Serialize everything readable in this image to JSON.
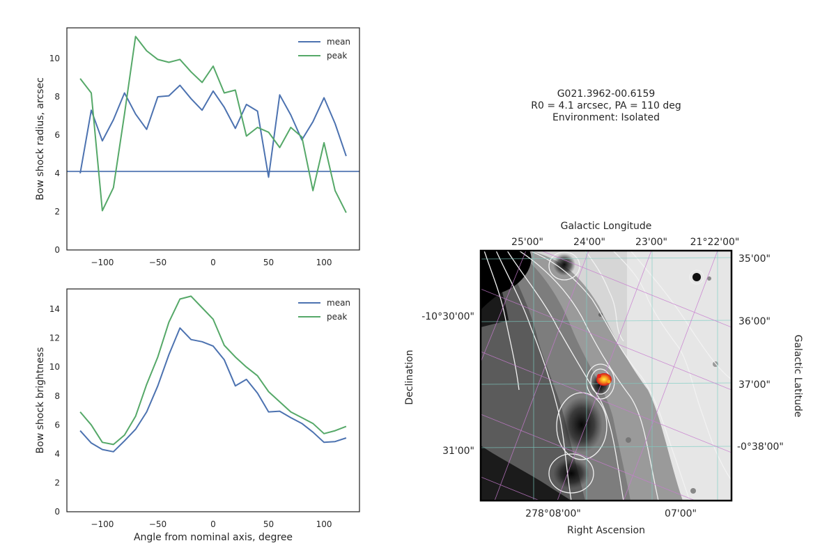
{
  "chart_data": [
    {
      "type": "line",
      "xlim": [
        -132,
        132
      ],
      "ylim": [
        0,
        11.6
      ],
      "xticks": [
        -100,
        -50,
        0,
        50,
        100
      ],
      "yticks": [
        0,
        2,
        4,
        6,
        8,
        10
      ],
      "xlabel": "",
      "ylabel": "Bow shock radius, arcsec",
      "x": [
        -120,
        -110,
        -100,
        -90,
        -80,
        -70,
        -60,
        -50,
        -40,
        -30,
        -20,
        -10,
        0,
        10,
        20,
        30,
        40,
        50,
        60,
        70,
        80,
        90,
        100,
        110,
        120
      ],
      "series": [
        {
          "name": "mean",
          "color": "#4c72b0",
          "values": [
            4.0,
            7.3,
            5.7,
            6.8,
            8.2,
            7.1,
            6.3,
            8.0,
            8.05,
            8.6,
            7.9,
            7.3,
            8.3,
            7.45,
            6.35,
            7.6,
            7.25,
            3.8,
            8.1,
            7.05,
            5.75,
            6.7,
            7.95,
            6.6,
            4.9
          ]
        },
        {
          "name": "peak",
          "color": "#55a868",
          "values": [
            8.95,
            8.2,
            2.05,
            3.25,
            7.1,
            11.15,
            10.4,
            9.95,
            9.8,
            9.95,
            9.3,
            8.75,
            9.6,
            8.2,
            8.35,
            5.95,
            6.4,
            6.15,
            5.35,
            6.4,
            5.9,
            3.1,
            5.6,
            3.1,
            1.95
          ]
        }
      ],
      "hline": {
        "y": 4.1,
        "color": "#4c72b0"
      },
      "legend": "top-right"
    },
    {
      "type": "line",
      "xlim": [
        -132,
        132
      ],
      "ylim": [
        0,
        15.4
      ],
      "xticks": [
        -100,
        -50,
        0,
        50,
        100
      ],
      "yticks": [
        0,
        2,
        4,
        6,
        8,
        10,
        12,
        14
      ],
      "xlabel": "Angle from nominal axis, degree",
      "ylabel": "Bow shock brightness",
      "x": [
        -120,
        -110,
        -100,
        -90,
        -80,
        -70,
        -60,
        -50,
        -40,
        -30,
        -20,
        -10,
        0,
        10,
        20,
        30,
        40,
        50,
        60,
        70,
        80,
        90,
        100,
        110,
        120
      ],
      "series": [
        {
          "name": "mean",
          "color": "#4c72b0",
          "values": [
            5.6,
            4.75,
            4.3,
            4.15,
            4.9,
            5.7,
            6.9,
            8.7,
            10.85,
            12.7,
            11.9,
            11.75,
            11.45,
            10.5,
            8.7,
            9.15,
            8.2,
            6.9,
            6.95,
            6.5,
            6.1,
            5.5,
            4.8,
            4.85,
            5.1
          ]
        },
        {
          "name": "peak",
          "color": "#55a868",
          "values": [
            6.9,
            6.0,
            4.8,
            4.65,
            5.3,
            6.6,
            8.8,
            10.7,
            13.1,
            14.7,
            14.9,
            14.1,
            13.3,
            11.5,
            10.7,
            10.0,
            9.4,
            8.3,
            7.6,
            6.9,
            6.5,
            6.1,
            5.4,
            5.6,
            5.9
          ]
        }
      ],
      "legend": "top-right"
    }
  ],
  "info": {
    "line1": "G021.3962-00.6159",
    "line2": "R0 = 4.1 arcsec, PA = 110 deg",
    "line3": "Environment: Isolated"
  },
  "sky": {
    "top_label": "Galactic Longitude",
    "top_ticks": [
      "25'00\"",
      "24'00\"",
      "23'00\"",
      "21°22'00\""
    ],
    "right_label": "Galactic Latitude",
    "right_ticks": [
      "35'00\"",
      "36'00\"",
      "37'00\"",
      "-0°38'00\""
    ],
    "left_label": "Declination",
    "left_ticks": [
      "-10°30'00\"",
      "31'00\""
    ],
    "bottom_label": "Right Ascension",
    "bottom_ticks": [
      "278°08'00\"",
      "07'00\""
    ]
  },
  "colors": {
    "axes": "#262626",
    "contour": "#f2f2f2",
    "grid_equatorial": "#7ecec4",
    "grid_galactic": "#c77ccf",
    "source": "#e8231c"
  }
}
